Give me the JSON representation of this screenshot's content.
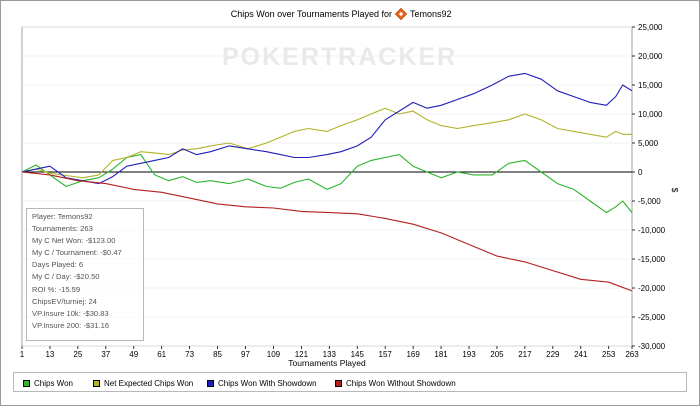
{
  "chart_data": {
    "type": "line",
    "title_prefix": "Chips Won over Tournaments Played for",
    "title_player": "Temons92",
    "xlabel": "Tournaments Played",
    "ylabel": "$",
    "xlim": [
      1,
      263
    ],
    "ylim": [
      -30000,
      25000
    ],
    "x_ticks": [
      1,
      13,
      25,
      37,
      49,
      61,
      73,
      85,
      97,
      109,
      121,
      133,
      145,
      157,
      169,
      181,
      193,
      205,
      217,
      229,
      241,
      253,
      263
    ],
    "y_ticks": [
      25000,
      20000,
      15000,
      10000,
      5000,
      0,
      -5000,
      -10000,
      -15000,
      -20000,
      -25000,
      -30000
    ],
    "y_tick_labels": [
      "25,000",
      "20,000",
      "15,000",
      "10,000",
      "5,000",
      "0",
      "-5,000",
      "-10,000",
      "-15,000",
      "-20,000",
      "-25,000",
      "-30,000"
    ],
    "watermark": "POKERTRACKER",
    "series": [
      {
        "name": "Chips Won",
        "color": "#2db52d",
        "x": [
          1,
          7,
          13,
          20,
          27,
          34,
          40,
          46,
          52,
          58,
          64,
          70,
          76,
          82,
          90,
          98,
          106,
          112,
          118,
          124,
          132,
          138,
          145,
          151,
          157,
          163,
          169,
          175,
          181,
          188,
          195,
          203,
          210,
          217,
          224,
          231,
          238,
          245,
          252,
          256,
          259,
          263
        ],
        "y": [
          0,
          1200,
          -500,
          -2500,
          -1500,
          -1000,
          500,
          2500,
          3000,
          -500,
          -1500,
          -800,
          -1800,
          -1500,
          -2000,
          -1200,
          -2500,
          -2800,
          -1800,
          -1200,
          -3000,
          -2000,
          1000,
          2000,
          2500,
          3000,
          1000,
          0,
          -1000,
          0,
          -500,
          -500,
          1500,
          2000,
          0,
          -2000,
          -3000,
          -5000,
          -7000,
          -6000,
          -5000,
          -7000
        ]
      },
      {
        "name": "Net Expected Chips Won",
        "color": "#b3b32b",
        "x": [
          1,
          7,
          13,
          20,
          27,
          34,
          40,
          46,
          52,
          58,
          64,
          70,
          76,
          82,
          90,
          98,
          106,
          112,
          118,
          124,
          132,
          138,
          145,
          151,
          157,
          163,
          169,
          175,
          181,
          188,
          195,
          203,
          210,
          217,
          224,
          231,
          238,
          245,
          252,
          256,
          259,
          263
        ],
        "y": [
          0,
          500,
          -200,
          -600,
          -1000,
          -500,
          2000,
          2500,
          3500,
          3300,
          3000,
          3800,
          4000,
          4500,
          5000,
          4000,
          5000,
          6000,
          7000,
          7500,
          7000,
          8000,
          9000,
          10000,
          11000,
          10000,
          10500,
          9000,
          8000,
          7500,
          8000,
          8500,
          9000,
          10000,
          9000,
          7500,
          7000,
          6500,
          6000,
          7000,
          6500,
          6500
        ]
      },
      {
        "name": "Chips Won With Showdown",
        "color": "#1f1fb8",
        "x": [
          1,
          7,
          13,
          20,
          27,
          34,
          40,
          46,
          52,
          58,
          64,
          70,
          76,
          82,
          90,
          98,
          106,
          112,
          118,
          124,
          132,
          138,
          145,
          151,
          157,
          163,
          169,
          175,
          181,
          188,
          195,
          203,
          210,
          217,
          224,
          231,
          238,
          245,
          252,
          256,
          259,
          263
        ],
        "y": [
          0,
          500,
          1000,
          -1000,
          -1500,
          -2000,
          -800,
          1000,
          1500,
          2000,
          2500,
          4000,
          3000,
          3500,
          4500,
          4000,
          3500,
          3000,
          2500,
          2500,
          3000,
          3500,
          4500,
          6000,
          9000,
          10500,
          12000,
          11000,
          11500,
          12500,
          13500,
          15000,
          16500,
          17000,
          16000,
          14000,
          13000,
          12000,
          11500,
          13000,
          15000,
          14000
        ]
      },
      {
        "name": "Chips Won Without Showdown",
        "color": "#b31f1f",
        "x": [
          1,
          13,
          25,
          37,
          49,
          61,
          73,
          85,
          97,
          109,
          121,
          133,
          145,
          157,
          169,
          181,
          193,
          205,
          217,
          229,
          241,
          253,
          263
        ],
        "y": [
          0,
          -500,
          -1500,
          -2000,
          -3000,
          -3500,
          -4500,
          -5500,
          -6000,
          -6200,
          -6800,
          -7000,
          -7200,
          -8000,
          -9000,
          -10500,
          -12500,
          -14500,
          -15500,
          -17000,
          -18500,
          -19000,
          -20500
        ]
      }
    ]
  },
  "info_box": [
    "Player: Temons92",
    "Tournaments: 263",
    "My C Net Won: -$123.00",
    "My C / Tournament: -$0.47",
    "Days Played: 6",
    "My C / Day: -$20.50",
    "ROI %: -15.59",
    "ChipsEV/turniej: 24",
    "VP.Insure 10k: -$30.83",
    "VP.Insure 200: -$31.16"
  ],
  "legend": {
    "items": [
      "Chips Won",
      "Net Expected Chips Won",
      "Chips Won With Showdown",
      "Chips Won Without Showdown"
    ],
    "colors": [
      "#2db52d",
      "#b3b32b",
      "#1f1fb8",
      "#b31f1f"
    ]
  }
}
